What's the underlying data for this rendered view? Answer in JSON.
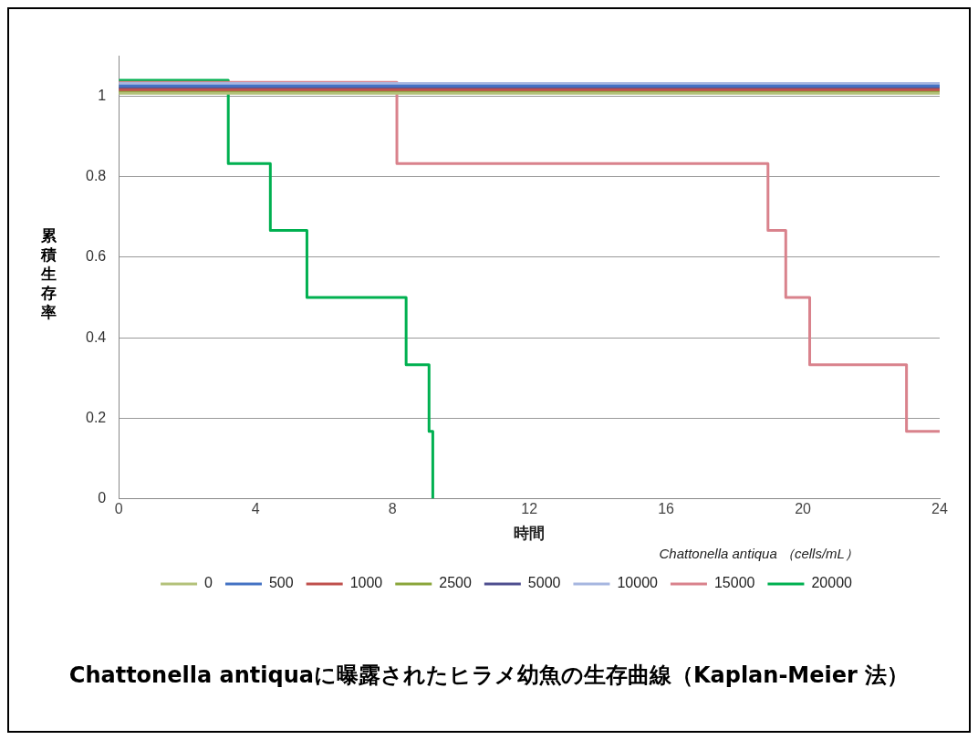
{
  "chart_data": {
    "type": "step",
    "title": "Chattonella antiquaに曝露されたヒラメ幼魚の生存曲線（Kaplan-Meier 法）",
    "xlabel": "時間",
    "ylabel": "累積生存率",
    "legend_title": "Chattonella antiqua （cells/mL）",
    "xlim": [
      0,
      24
    ],
    "xticks": [
      0,
      4,
      8,
      12,
      16,
      20,
      24
    ],
    "ylim": [
      0,
      1.1
    ],
    "yticks": [
      0,
      0.2,
      0.4,
      0.6,
      0.8,
      1
    ],
    "grid": "y",
    "legend": "bottom",
    "marker": "none",
    "line_style": "solid",
    "series": [
      {
        "name": "0",
        "color": "#b3c27a",
        "x": [
          0,
          24
        ],
        "values": [
          1.008,
          1.008
        ]
      },
      {
        "name": "500",
        "color": "#4472c4",
        "x": [
          0,
          24
        ],
        "values": [
          1.026,
          1.026
        ]
      },
      {
        "name": "1000",
        "color": "#c0504d",
        "x": [
          0,
          24
        ],
        "values": [
          1.017,
          1.017
        ]
      },
      {
        "name": "2500",
        "color": "#8aa53a",
        "x": [
          0,
          24
        ],
        "values": [
          1.012,
          1.012
        ]
      },
      {
        "name": "5000",
        "color": "#4f4f8f",
        "x": [
          0,
          24
        ],
        "values": [
          1.021,
          1.021
        ]
      },
      {
        "name": "10000",
        "color": "#a6b6e0",
        "x": [
          0,
          24
        ],
        "values": [
          1.032,
          1.032
        ]
      },
      {
        "name": "15000",
        "color": "#d9828c",
        "x": [
          0,
          8.13,
          18.98,
          19.5,
          20.2,
          23.03,
          24
        ],
        "values": [
          1.035,
          0.833,
          0.667,
          0.5,
          0.333,
          0.167,
          0.167
        ]
      },
      {
        "name": "20000",
        "color": "#00b050",
        "x": [
          0,
          3.2,
          4.43,
          5.5,
          8.4,
          9.07,
          9.18
        ],
        "values": [
          1.04,
          0.833,
          0.667,
          0.5,
          0.333,
          0.167,
          0
        ]
      }
    ]
  }
}
